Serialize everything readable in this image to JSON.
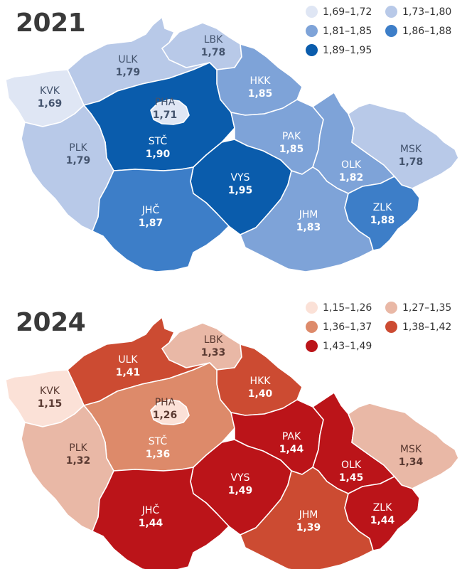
{
  "maps": [
    {
      "year": "2021",
      "legend": [
        {
          "label": "1,69–1,72",
          "color": "#dfe6f4"
        },
        {
          "label": "1,73–1,80",
          "color": "#b8c9e8"
        },
        {
          "label": "1,81–1,85",
          "color": "#7ea3d8"
        },
        {
          "label": "1,86–1,88",
          "color": "#3d7ec8"
        },
        {
          "label": "1,89–1,95",
          "color": "#0a5cac"
        }
      ],
      "regions": {
        "ulk": {
          "code": "ULK",
          "value": "1,79",
          "color": "#b8c9e8",
          "text": "#44546e"
        },
        "lbk": {
          "code": "LBK",
          "value": "1,78",
          "color": "#b8c9e8",
          "text": "#44546e"
        },
        "hkk": {
          "code": "HKK",
          "value": "1,85",
          "color": "#7ea3d8",
          "text": "#ffffff"
        },
        "kvk": {
          "code": "KVK",
          "value": "1,69",
          "color": "#dfe6f4",
          "text": "#44546e"
        },
        "pha": {
          "code": "PHA",
          "value": "1,71",
          "color": "#dfe6f4",
          "text": "#44546e"
        },
        "stc": {
          "code": "STČ",
          "value": "1,90",
          "color": "#0a5cac",
          "text": "#ffffff"
        },
        "pak": {
          "code": "PAK",
          "value": "1,85",
          "color": "#7ea3d8",
          "text": "#ffffff"
        },
        "plk": {
          "code": "PLK",
          "value": "1,79",
          "color": "#b8c9e8",
          "text": "#44546e"
        },
        "vys": {
          "code": "VYS",
          "value": "1,95",
          "color": "#0a5cac",
          "text": "#ffffff"
        },
        "olk": {
          "code": "OLK",
          "value": "1,82",
          "color": "#7ea3d8",
          "text": "#ffffff"
        },
        "msk": {
          "code": "MSK",
          "value": "1,78",
          "color": "#b8c9e8",
          "text": "#44546e"
        },
        "jhc": {
          "code": "JHČ",
          "value": "1,87",
          "color": "#3d7ec8",
          "text": "#ffffff"
        },
        "jhm": {
          "code": "JHM",
          "value": "1,83",
          "color": "#7ea3d8",
          "text": "#ffffff"
        },
        "zlk": {
          "code": "ZLK",
          "value": "1,88",
          "color": "#3d7ec8",
          "text": "#ffffff"
        }
      }
    },
    {
      "year": "2024",
      "legend": [
        {
          "label": "1,15–1,26",
          "color": "#fbe1d7"
        },
        {
          "label": "1,27–1,35",
          "color": "#e9b8a6"
        },
        {
          "label": "1,36–1,37",
          "color": "#dd8a6a"
        },
        {
          "label": "1,38–1,42",
          "color": "#cc4b32"
        },
        {
          "label": "1,43–1,49",
          "color": "#bb1419"
        }
      ],
      "regions": {
        "ulk": {
          "code": "ULK",
          "value": "1,41",
          "color": "#cc4b32",
          "text": "#ffffff"
        },
        "lbk": {
          "code": "LBK",
          "value": "1,33",
          "color": "#e9b8a6",
          "text": "#5a3a32"
        },
        "hkk": {
          "code": "HKK",
          "value": "1,40",
          "color": "#cc4b32",
          "text": "#ffffff"
        },
        "kvk": {
          "code": "KVK",
          "value": "1,15",
          "color": "#fbe1d7",
          "text": "#5a3a32"
        },
        "pha": {
          "code": "PHA",
          "value": "1,26",
          "color": "#fbe1d7",
          "text": "#5a3a32"
        },
        "stc": {
          "code": "STČ",
          "value": "1,36",
          "color": "#dd8a6a",
          "text": "#ffffff"
        },
        "pak": {
          "code": "PAK",
          "value": "1,44",
          "color": "#bb1419",
          "text": "#ffffff"
        },
        "plk": {
          "code": "PLK",
          "value": "1,32",
          "color": "#e9b8a6",
          "text": "#5a3a32"
        },
        "vys": {
          "code": "VYS",
          "value": "1,49",
          "color": "#bb1419",
          "text": "#ffffff"
        },
        "olk": {
          "code": "OLK",
          "value": "1,45",
          "color": "#bb1419",
          "text": "#ffffff"
        },
        "msk": {
          "code": "MSK",
          "value": "1,34",
          "color": "#e9b8a6",
          "text": "#5a3a32"
        },
        "jhc": {
          "code": "JHČ",
          "value": "1,44",
          "color": "#bb1419",
          "text": "#ffffff"
        },
        "jhm": {
          "code": "JHM",
          "value": "1,39",
          "color": "#cc4b32",
          "text": "#ffffff"
        },
        "zlk": {
          "code": "ZLK",
          "value": "1,44",
          "color": "#bb1419",
          "text": "#ffffff"
        }
      }
    }
  ]
}
